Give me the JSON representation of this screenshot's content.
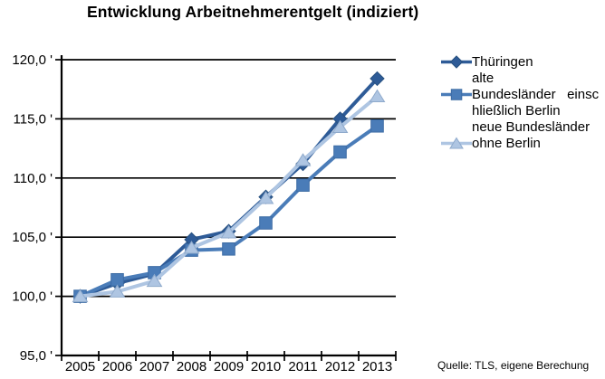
{
  "title": "Entwicklung Arbeitnehmerentgelt (indiziert)",
  "source_note": "Quelle: TLS, eigene Berechung",
  "colors": {
    "background": "#ffffff",
    "axis": "#000000",
    "grid": "#000000",
    "text": "#000000",
    "thueringen": "#2E5B97",
    "alte_bundeslaender": "#4A7CB8",
    "neue_bundeslaender": "#AEC5E2",
    "neue_bundeslaender_outline": "#8FAACC"
  },
  "chart_data": {
    "type": "line",
    "title": "Entwicklung Arbeitnehmerentgelt (indiziert)",
    "categories": [
      "2005",
      "2006",
      "2007",
      "2008",
      "2009",
      "2010",
      "2011",
      "2012",
      "2013"
    ],
    "series": [
      {
        "name": "Thüringen",
        "marker": "diamond",
        "color": "#2E5B97",
        "outline": "#27507F",
        "values": [
          100.0,
          101.1,
          101.9,
          104.8,
          105.5,
          108.4,
          111.2,
          115.0,
          118.4
        ],
        "legend_lines": [
          "Thüringen"
        ],
        "legend_marker_line": 0
      },
      {
        "name": "alte Bundesländer einschließlich Berlin",
        "marker": "square",
        "color": "#4A7CB8",
        "outline": "#3D6CA4",
        "values": [
          100.0,
          101.4,
          102.0,
          103.9,
          104.0,
          106.2,
          109.4,
          112.2,
          114.4
        ],
        "legend_lines": [
          "alte",
          "Bundesländer   einsc",
          "hließlich Berlin"
        ],
        "legend_marker_line": 1
      },
      {
        "name": "neue Bundesländer ohne Berlin",
        "marker": "triangle",
        "color": "#AEC5E2",
        "outline": "#8FAACC",
        "values": [
          100.0,
          100.4,
          101.3,
          104.1,
          105.4,
          108.3,
          111.5,
          114.3,
          116.9
        ],
        "legend_lines": [
          "neue Bundesländer",
          "ohne Berlin"
        ],
        "legend_marker_line": 1
      }
    ],
    "ylim": [
      95,
      120
    ],
    "yticks": [
      {
        "value": 120,
        "label": "120,0 '"
      },
      {
        "value": 115,
        "label": "115,0 '"
      },
      {
        "value": 110,
        "label": "110,0 '"
      },
      {
        "value": 105,
        "label": "105,0 '"
      },
      {
        "value": 100,
        "label": "100,0 '"
      },
      {
        "value": 95,
        "label": "95,0 '"
      }
    ],
    "grid_values": [
      100,
      105,
      110,
      115,
      120
    ],
    "grid": "horizontal",
    "legend_position": "right"
  }
}
